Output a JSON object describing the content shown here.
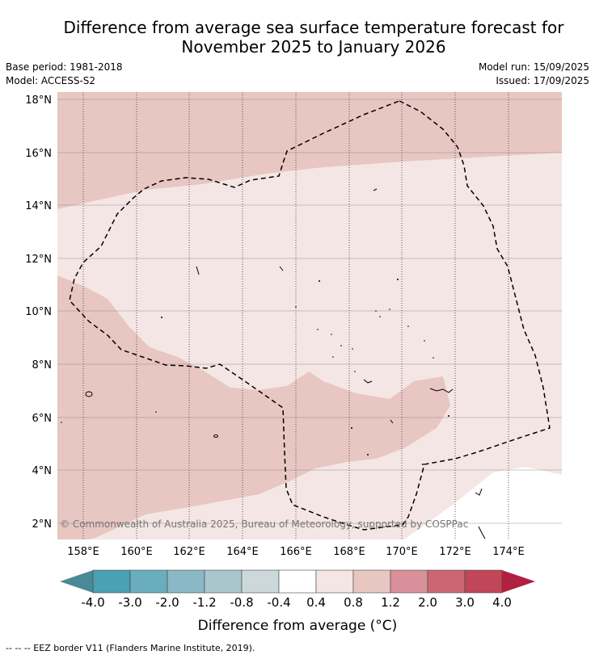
{
  "title_line1": "Difference from average sea surface temperature forecast for",
  "title_line2": "November 2025 to January 2026",
  "meta": {
    "base_period": "Base period: 1981-2018",
    "model": "Model: ACCESS-S2",
    "model_run": "Model run: 15/09/2025",
    "issued": "Issued: 17/09/2025"
  },
  "map": {
    "lat_labels": [
      "18°N",
      "16°N",
      "14°N",
      "12°N",
      "10°N",
      "8°N",
      "6°N",
      "4°N",
      "2°N"
    ],
    "lon_labels": [
      "158°E",
      "160°E",
      "162°E",
      "164°E",
      "166°E",
      "168°E",
      "170°E",
      "172°E",
      "174°E"
    ],
    "copyright": "© Commonwealth of Australia 2025, Bureau of Meteorology, supported by COSPPac"
  },
  "colorbar": {
    "tick_labels": [
      "-4.0",
      "-3.0",
      "-2.0",
      "-1.2",
      "-0.8",
      "-0.4",
      "0.4",
      "0.8",
      "1.2",
      "2.0",
      "3.0",
      "4.0"
    ],
    "colors": [
      "#4a8a96",
      "#4aa0b4",
      "#6aaebe",
      "#8ab8c4",
      "#a8c6cc",
      "#ccd8da",
      "#ffffff",
      "#f4e6e4",
      "#e8c6c2",
      "#d8909a",
      "#cc6672",
      "#c04658",
      "#b02040"
    ],
    "label": "Difference from average (°C)"
  },
  "footer": "--  --  -- EEZ border V11 (Flanders Marine Institute, 2019)."
}
